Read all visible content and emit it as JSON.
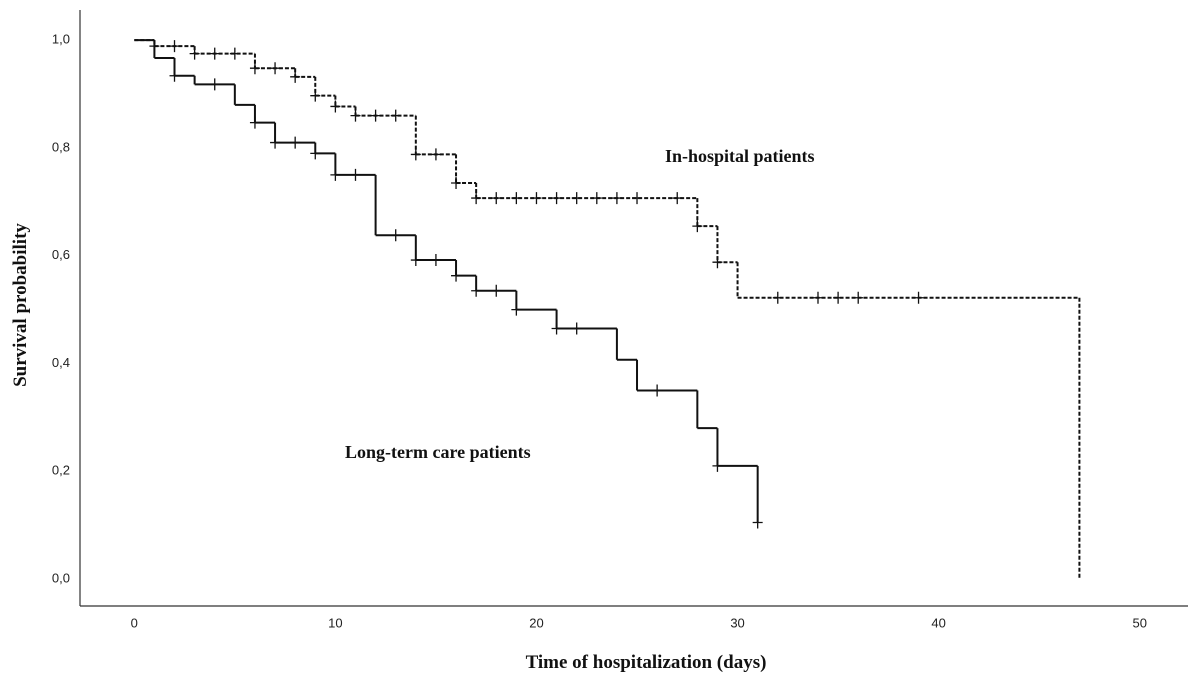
{
  "chart_data": {
    "type": "km",
    "x_label": "Time of hospitalization (days)",
    "y_label": "Survival probability",
    "xlim": [
      -2.7,
      52.4
    ],
    "ylim": [
      -0.05,
      1.056
    ],
    "xticks": [
      0,
      10,
      20,
      30,
      40,
      50
    ],
    "yticks": [
      {
        "value": 0,
        "label": "0,0"
      },
      {
        "value": 0.2,
        "label": "0,2"
      },
      {
        "value": 0.4,
        "label": "0,4"
      },
      {
        "value": 0.6,
        "label": "0,6"
      },
      {
        "value": 0.8,
        "label": "0,8"
      },
      {
        "value": 1,
        "label": "1,0"
      }
    ],
    "series": [
      {
        "name": "In-hospital patients",
        "color": "#111111",
        "dash": true,
        "x": [
          0,
          1,
          3,
          6,
          8,
          9,
          10,
          11,
          14,
          16,
          17,
          28,
          29,
          30,
          47
        ],
        "values": [
          1,
          0.989,
          0.975,
          0.948,
          0.932,
          0.897,
          0.877,
          0.86,
          0.788,
          0.735,
          0.707,
          0.655,
          0.588,
          0.522,
          0
        ],
        "censored_x": [
          1,
          2,
          3,
          4,
          5,
          6,
          7,
          8,
          9,
          10,
          11,
          12,
          13,
          14,
          15,
          16,
          17,
          18,
          19,
          20,
          21,
          22,
          23,
          24,
          25,
          27,
          28,
          29,
          32,
          34,
          35,
          36,
          39
        ],
        "censored_values": [
          0.989,
          0.989,
          0.975,
          0.975,
          0.975,
          0.948,
          0.948,
          0.932,
          0.897,
          0.877,
          0.86,
          0.86,
          0.86,
          0.788,
          0.788,
          0.735,
          0.707,
          0.707,
          0.707,
          0.707,
          0.707,
          0.707,
          0.707,
          0.707,
          0.707,
          0.707,
          0.655,
          0.588,
          0.522,
          0.522,
          0.522,
          0.522,
          0.522
        ]
      },
      {
        "name": "Long-term care patients",
        "color": "#111111",
        "dash": false,
        "x": [
          0,
          1,
          2,
          3,
          5,
          6,
          7,
          9,
          10,
          12,
          14,
          16,
          17,
          19,
          21,
          24,
          25,
          28,
          29,
          31
        ],
        "values": [
          1,
          0.967,
          0.934,
          0.918,
          0.88,
          0.847,
          0.81,
          0.79,
          0.75,
          0.638,
          0.592,
          0.563,
          0.535,
          0.5,
          0.465,
          0.407,
          0.35,
          0.28,
          0.21,
          0.105
        ],
        "censored_x": [
          2,
          4,
          6,
          7,
          8,
          9,
          10,
          11,
          13,
          14,
          15,
          16,
          17,
          18,
          19,
          21,
          22,
          26,
          29,
          31
        ],
        "censored_values": [
          0.934,
          0.918,
          0.847,
          0.81,
          0.81,
          0.79,
          0.75,
          0.75,
          0.638,
          0.592,
          0.592,
          0.563,
          0.535,
          0.535,
          0.5,
          0.465,
          0.465,
          0.35,
          0.21,
          0.105
        ]
      }
    ]
  }
}
